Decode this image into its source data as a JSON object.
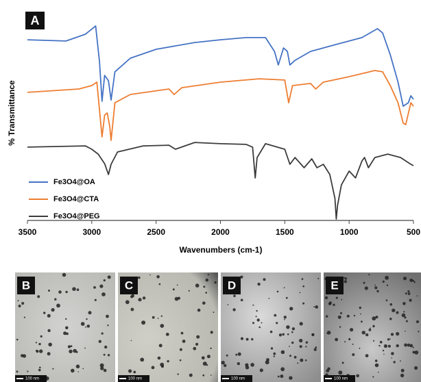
{
  "chart_data": {
    "type": "line",
    "panel_label": "A",
    "x_label": "Wavenumbers (cm-1)",
    "y_label": "% Transmittance",
    "xlim": [
      3500,
      500
    ],
    "xticks": [
      3500,
      3000,
      2500,
      2000,
      1500,
      1000,
      500
    ],
    "ylim": [
      0,
      100
    ],
    "legend": "lower left",
    "series": [
      {
        "name": "Fe3O4@OA",
        "color": "#4472c4",
        "x": [
          3500,
          3200,
          3050,
          2970,
          2940,
          2920,
          2900,
          2870,
          2850,
          2820,
          2700,
          2500,
          2200,
          2000,
          1800,
          1650,
          1580,
          1550,
          1510,
          1480,
          1460,
          1420,
          1300,
          1100,
          900,
          780,
          740,
          680,
          620,
          580,
          540,
          520,
          500
        ],
        "values": [
          84.5,
          83.9,
          87.1,
          91,
          74.2,
          55.5,
          67.7,
          65.2,
          56.1,
          69.4,
          75.8,
          80,
          83.2,
          84.5,
          85.5,
          85.5,
          79,
          72.6,
          80.6,
          79,
          72.6,
          74.8,
          79,
          82.3,
          85.5,
          89.7,
          87.7,
          77.4,
          64.5,
          53.2,
          54.8,
          58.1,
          56.5
        ]
      },
      {
        "name": "Fe3O4@CTA",
        "color": "#ed7d31",
        "x": [
          3500,
          3100,
          3000,
          2960,
          2935,
          2920,
          2900,
          2880,
          2860,
          2850,
          2820,
          2700,
          2400,
          2360,
          2300,
          2000,
          1700,
          1500,
          1470,
          1440,
          1300,
          1260,
          1200,
          1000,
          800,
          740,
          680,
          620,
          580,
          560,
          520,
          500
        ],
        "values": [
          59.7,
          61.3,
          62.9,
          64.5,
          48.4,
          38.7,
          49,
          50,
          43.5,
          37.1,
          54.8,
          58.7,
          61.3,
          58.7,
          61.9,
          64.5,
          66.1,
          65.5,
          54.8,
          62.9,
          63.9,
          61.3,
          64.5,
          67.1,
          70,
          69.4,
          62.9,
          54.8,
          45.2,
          44.5,
          54.8,
          53.2
        ]
      },
      {
        "name": "Fe3O4@PEG",
        "color": "#3b3b3b",
        "x": [
          3500,
          3050,
          3000,
          2950,
          2900,
          2870,
          2850,
          2800,
          2600,
          2400,
          2350,
          2200,
          2000,
          1800,
          1750,
          1730,
          1715,
          1650,
          1500,
          1460,
          1420,
          1350,
          1290,
          1250,
          1200,
          1150,
          1110,
          1100,
          1090,
          1060,
          1000,
          950,
          900,
          880,
          850,
          800,
          700,
          600,
          520,
          500
        ],
        "values": [
          33.9,
          34.5,
          32.9,
          30.6,
          26.1,
          21,
          25.8,
          31.6,
          34.5,
          34.8,
          32.9,
          36.1,
          35.5,
          35.2,
          33.9,
          19.4,
          29,
          35.5,
          32.9,
          25.8,
          29,
          24.2,
          28.4,
          24.2,
          25.8,
          21,
          9.7,
          0,
          6.5,
          16.1,
          22.6,
          19.4,
          27.4,
          29,
          24.2,
          29,
          30.6,
          29,
          25.8,
          25.2
        ]
      }
    ]
  },
  "panels": [
    {
      "label": "B",
      "scale_bar": "100 nm"
    },
    {
      "label": "C",
      "scale_bar": "100 nm"
    },
    {
      "label": "D",
      "scale_bar": "100 nm"
    },
    {
      "label": "E",
      "scale_bar": "100 nm"
    }
  ]
}
